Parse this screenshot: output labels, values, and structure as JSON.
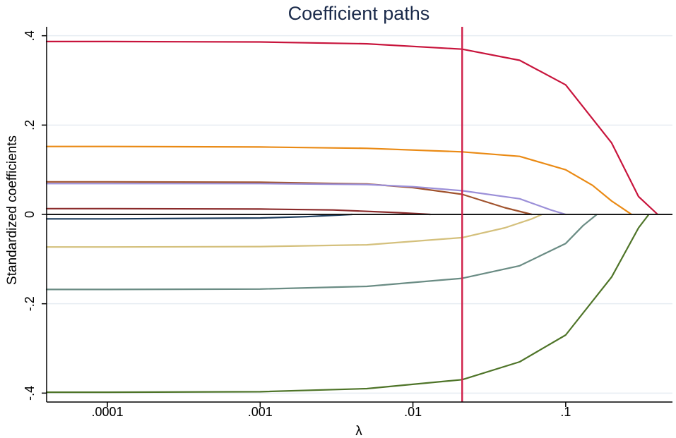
{
  "chart_data": {
    "type": "line",
    "title": "Coefficient paths",
    "xlabel": "λ",
    "ylabel": "Standardized coefficients",
    "x_scale": "log",
    "xlim": [
      4e-05,
      0.5
    ],
    "ylim": [
      -0.42,
      0.42
    ],
    "x_ticks": [
      0.0001,
      0.001,
      0.01,
      0.1
    ],
    "x_tick_labels": [
      ".0001",
      ".001",
      ".01",
      ".1"
    ],
    "y_ticks": [
      -0.4,
      -0.2,
      0,
      0.2,
      0.4
    ],
    "y_tick_labels": [
      "-.4",
      "-.2",
      "0",
      ".2",
      ".4"
    ],
    "grid": true,
    "reference_lines": {
      "y_zero": 0,
      "selected_lambda": 0.021,
      "selected_lambda_color": "#d0204a"
    },
    "series": [
      {
        "color": "#c8143c",
        "x": [
          4e-05,
          0.0001,
          0.001,
          0.005,
          0.021,
          0.05,
          0.1,
          0.2,
          0.3,
          0.4
        ],
        "y": [
          0.387,
          0.387,
          0.386,
          0.382,
          0.37,
          0.345,
          0.29,
          0.16,
          0.04,
          0
        ]
      },
      {
        "color": "#ea8a14",
        "x": [
          4e-05,
          0.0001,
          0.001,
          0.005,
          0.021,
          0.05,
          0.1,
          0.15,
          0.2,
          0.27
        ],
        "y": [
          0.152,
          0.152,
          0.151,
          0.148,
          0.14,
          0.13,
          0.1,
          0.065,
          0.03,
          0
        ]
      },
      {
        "color": "#a0522d",
        "x": [
          4e-05,
          0.0001,
          0.001,
          0.005,
          0.01,
          0.021,
          0.04,
          0.06
        ],
        "y": [
          0.073,
          0.073,
          0.072,
          0.068,
          0.06,
          0.045,
          0.015,
          0
        ]
      },
      {
        "color": "#9b8fd8",
        "x": [
          4e-05,
          0.0001,
          0.001,
          0.005,
          0.01,
          0.021,
          0.05,
          0.08,
          0.1
        ],
        "y": [
          0.069,
          0.069,
          0.069,
          0.067,
          0.062,
          0.053,
          0.035,
          0.01,
          0
        ]
      },
      {
        "color": "#8b2a2a",
        "x": [
          4e-05,
          0.0001,
          0.001,
          0.003,
          0.008,
          0.013
        ],
        "y": [
          0.013,
          0.013,
          0.012,
          0.01,
          0.004,
          0
        ]
      },
      {
        "color": "#1c3c5c",
        "x": [
          4e-05,
          0.0001,
          0.001,
          0.002,
          0.004
        ],
        "y": [
          -0.01,
          -0.01,
          -0.008,
          -0.005,
          0
        ]
      },
      {
        "color": "#d4c07c",
        "x": [
          4e-05,
          0.0001,
          0.001,
          0.005,
          0.021,
          0.04,
          0.06,
          0.07
        ],
        "y": [
          -0.073,
          -0.073,
          -0.072,
          -0.068,
          -0.052,
          -0.03,
          -0.01,
          0
        ]
      },
      {
        "color": "#6a8c84",
        "x": [
          4e-05,
          0.0001,
          0.001,
          0.005,
          0.021,
          0.05,
          0.1,
          0.13,
          0.16
        ],
        "y": [
          -0.168,
          -0.168,
          -0.167,
          -0.161,
          -0.143,
          -0.115,
          -0.065,
          -0.025,
          0
        ]
      },
      {
        "color": "#4e7428",
        "x": [
          4e-05,
          0.0001,
          0.001,
          0.005,
          0.021,
          0.05,
          0.1,
          0.2,
          0.3,
          0.35
        ],
        "y": [
          -0.398,
          -0.398,
          -0.397,
          -0.39,
          -0.37,
          -0.33,
          -0.27,
          -0.14,
          -0.03,
          0
        ]
      }
    ]
  }
}
